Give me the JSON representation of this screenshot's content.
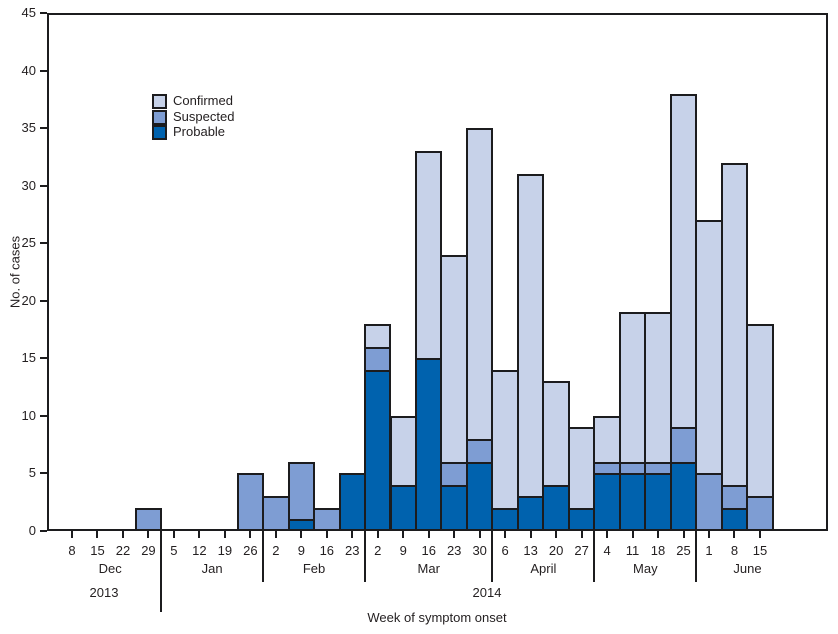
{
  "chart_data": {
    "type": "bar",
    "stacked": true,
    "title": "",
    "xlabel": "Week of symptom onset",
    "ylabel": "No. of cases",
    "ylim": [
      0,
      45
    ],
    "ytick_step": 5,
    "grid": false,
    "legend_position": "upper-left-inside",
    "legend_order": [
      "Confirmed",
      "Suspected",
      "Probable"
    ],
    "outline_color": "#1c1c1e",
    "categories": [
      "8",
      "15",
      "22",
      "29",
      "5",
      "12",
      "19",
      "26",
      "2",
      "9",
      "16",
      "23",
      "2",
      "9",
      "16",
      "23",
      "30",
      "6",
      "13",
      "20",
      "27",
      "4",
      "11",
      "18",
      "25",
      "1",
      "8",
      "15"
    ],
    "months": [
      {
        "label": "Dec",
        "start": 0,
        "end": 3
      },
      {
        "label": "Jan",
        "start": 4,
        "end": 7
      },
      {
        "label": "Feb",
        "start": 8,
        "end": 11
      },
      {
        "label": "Mar",
        "start": 12,
        "end": 16
      },
      {
        "label": "April",
        "start": 17,
        "end": 20
      },
      {
        "label": "May",
        "start": 21,
        "end": 24
      },
      {
        "label": "June",
        "start": 25,
        "end": 27
      }
    ],
    "years": [
      "2013",
      "2014"
    ],
    "series": [
      {
        "name": "Probable",
        "color": "#0062ae",
        "values": [
          0,
          0,
          0,
          0,
          0,
          0,
          0,
          0,
          0,
          1,
          0,
          5,
          14,
          4,
          15,
          4,
          6,
          2,
          3,
          4,
          2,
          5,
          5,
          5,
          6,
          0,
          2,
          0
        ]
      },
      {
        "name": "Suspected",
        "color": "#7e9dd3",
        "values": [
          0,
          0,
          0,
          2,
          0,
          0,
          0,
          5,
          3,
          5,
          2,
          0,
          2,
          0,
          0,
          2,
          2,
          0,
          0,
          0,
          0,
          1,
          1,
          1,
          3,
          5,
          2,
          3
        ]
      },
      {
        "name": "Confirmed",
        "color": "#c7d2e9",
        "values": [
          0,
          0,
          0,
          0,
          0,
          0,
          0,
          0,
          0,
          0,
          0,
          0,
          2,
          6,
          18,
          18,
          27,
          12,
          28,
          9,
          7,
          4,
          13,
          13,
          29,
          22,
          28,
          15
        ]
      }
    ],
    "totals": [
      0,
      0,
      0,
      2,
      0,
      0,
      0,
      5,
      3,
      6,
      2,
      5,
      18,
      10,
      33,
      24,
      35,
      14,
      31,
      13,
      9,
      10,
      19,
      19,
      38,
      27,
      32,
      18
    ]
  }
}
